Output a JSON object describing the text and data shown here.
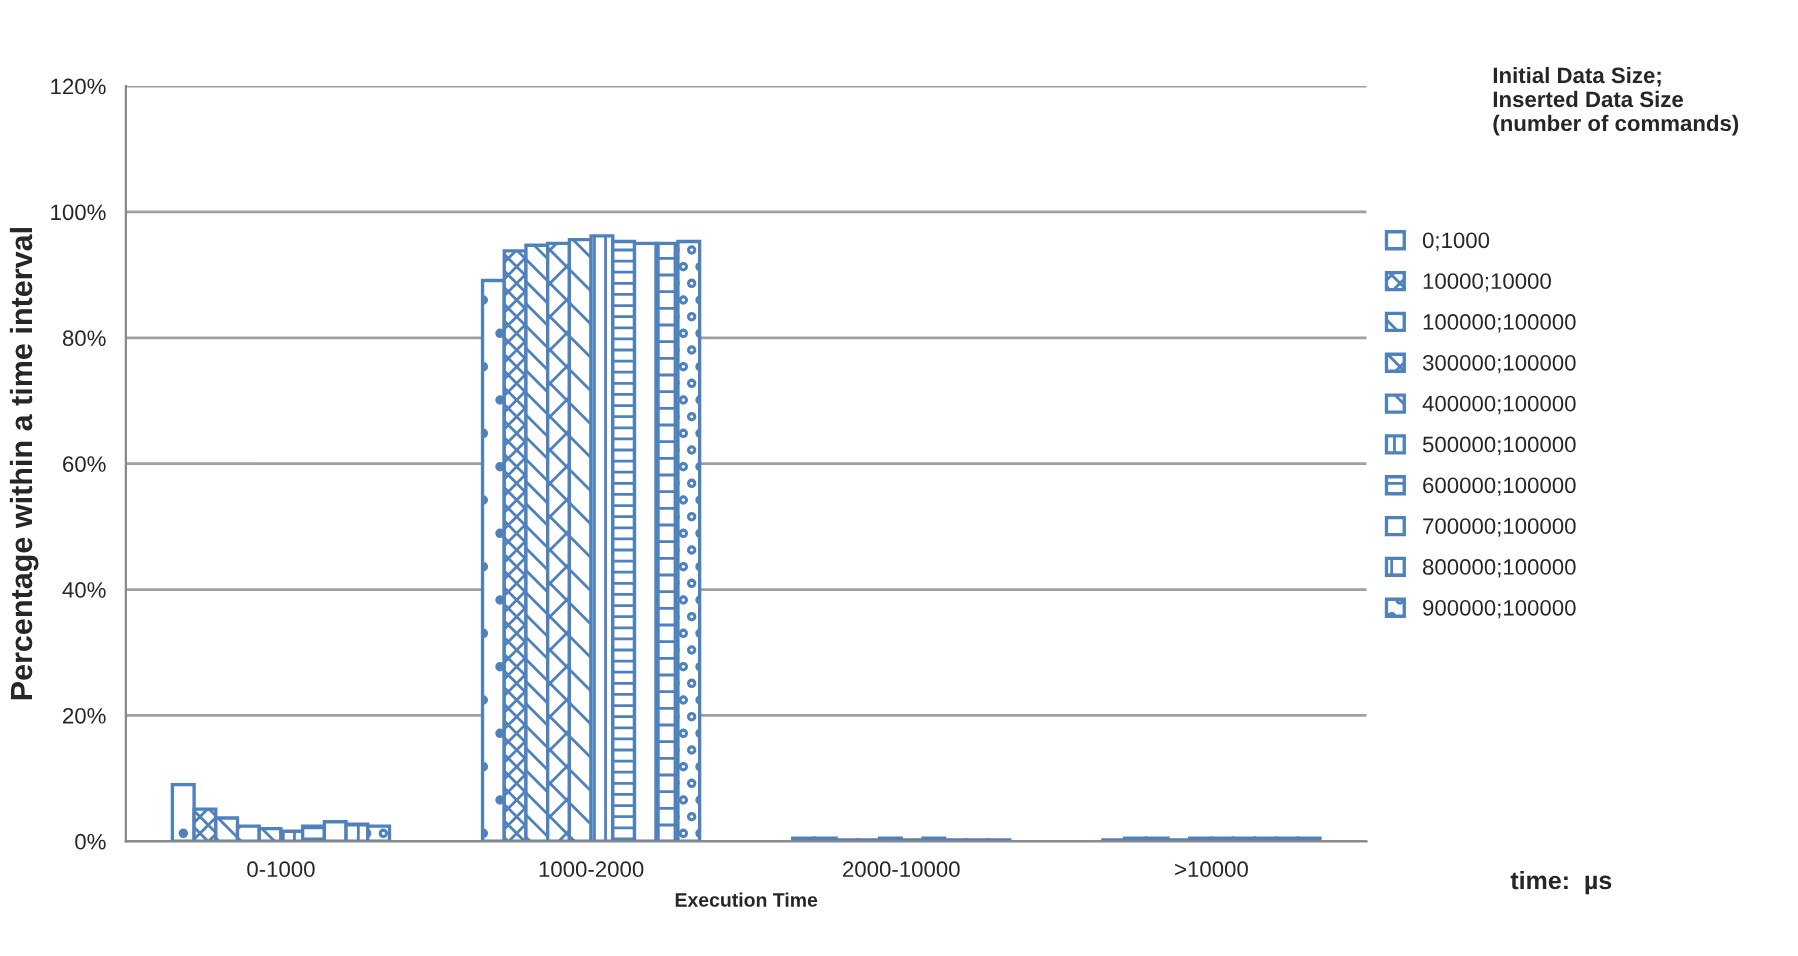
{
  "chart_data": {
    "type": "bar",
    "xlabel": "Execution Time",
    "ylabel": "Percentage within a time interval",
    "legend_title": "Initial Data Size;\nInserted Data Size\n(number of commands)",
    "annotations": [
      "time:  µs"
    ],
    "categories": [
      "0-1000",
      "1000-2000",
      "2000-10000",
      ">10000"
    ],
    "series": [
      {
        "name": "0;1000",
        "color": "#4f81bd",
        "values": [
          9.0,
          89.1,
          0.5,
          0.2
        ]
      },
      {
        "name": "10000;10000",
        "color": "#4f81bd",
        "values": [
          5.1,
          93.8,
          0.5,
          0.5
        ]
      },
      {
        "name": "100000;100000",
        "color": "#4f81bd",
        "values": [
          3.7,
          94.7,
          0.2,
          0.5
        ]
      },
      {
        "name": "300000;100000",
        "color": "#4f81bd",
        "values": [
          2.4,
          95.0,
          0.2,
          0.2
        ]
      },
      {
        "name": "400000;100000",
        "color": "#4f81bd",
        "values": [
          2.0,
          95.6,
          0.5,
          0.5
        ]
      },
      {
        "name": "500000;100000",
        "color": "#4f81bd",
        "values": [
          1.6,
          96.2,
          0.2,
          0.5
        ]
      },
      {
        "name": "600000;100000",
        "color": "#4f81bd",
        "values": [
          2.4,
          95.3,
          0.5,
          0.5
        ]
      },
      {
        "name": "700000;100000",
        "color": "#4f81bd",
        "values": [
          3.1,
          95.0,
          0.2,
          0.5
        ]
      },
      {
        "name": "800000;100000",
        "color": "#4f81bd",
        "values": [
          2.7,
          95.0,
          0.2,
          0.5
        ]
      },
      {
        "name": "900000;100000",
        "color": "#4f81bd",
        "values": [
          2.4,
          95.3,
          0.2,
          0.5
        ]
      }
    ],
    "ylim": [
      0,
      120
    ],
    "yticks": [
      {
        "value": 0,
        "label": "0%"
      },
      {
        "value": 20,
        "label": "20%"
      },
      {
        "value": 40,
        "label": "40%"
      },
      {
        "value": 60,
        "label": "60%"
      },
      {
        "value": 80,
        "label": "80%"
      },
      {
        "value": 100,
        "label": "100%"
      },
      {
        "value": 120,
        "label": "120%"
      }
    ],
    "grid": "y",
    "legend": "right"
  }
}
